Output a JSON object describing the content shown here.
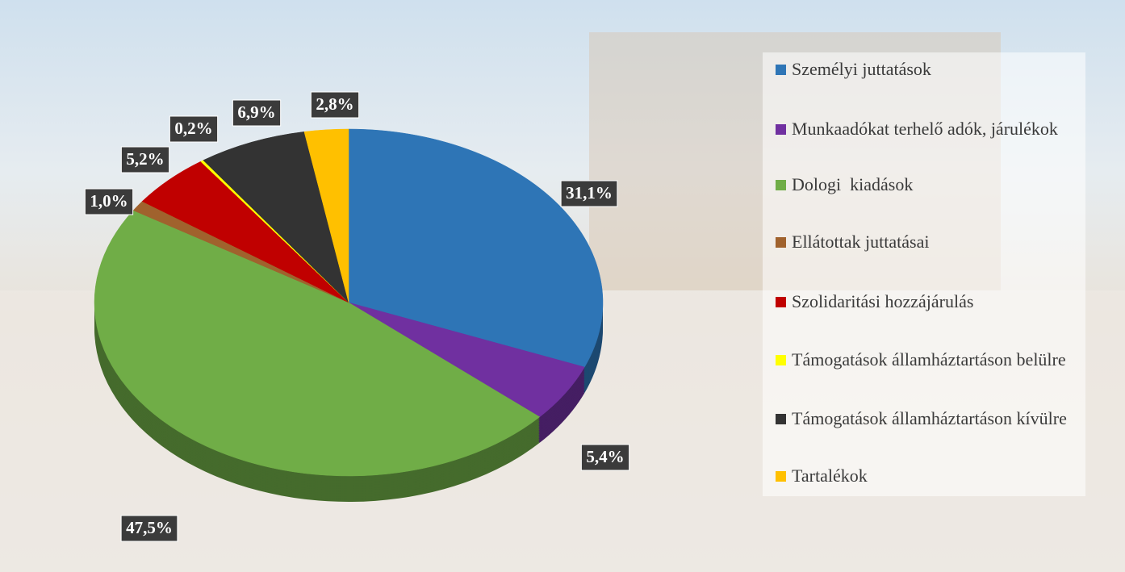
{
  "chart_data": {
    "type": "pie",
    "series": [
      {
        "name": "Személyi juttatások",
        "color": "#2e75b6",
        "values": [
          31.1
        ],
        "value_labels": [
          "31,1%"
        ]
      },
      {
        "name": "Munkaadókat terhelő adók, járulékok",
        "color": "#7030a0",
        "values": [
          5.4
        ],
        "value_labels": [
          "5,4%"
        ]
      },
      {
        "name": "Dologi  kiadások",
        "color": "#70ad47",
        "values": [
          47.5
        ],
        "value_labels": [
          "47,5%"
        ]
      },
      {
        "name": "Ellátottak juttatásai",
        "color": "#a0622d",
        "values": [
          1.0
        ],
        "value_labels": [
          "1,0%"
        ]
      },
      {
        "name": "Szolidaritási hozzájárulás",
        "color": "#c00000",
        "values": [
          5.2
        ],
        "value_labels": [
          "5,2%"
        ]
      },
      {
        "name": "Támogatások államháztartáson belülre",
        "color": "#ffff00",
        "values": [
          0.2
        ],
        "value_labels": [
          "0,2%"
        ]
      },
      {
        "name": "Támogatások államháztartáson kívülre",
        "color": "#333333",
        "values": [
          6.9
        ],
        "value_labels": [
          "6,9%"
        ]
      },
      {
        "name": "Tartalékok",
        "color": "#ffc000",
        "values": [
          2.8
        ],
        "value_labels": [
          "2,8%"
        ]
      }
    ]
  }
}
